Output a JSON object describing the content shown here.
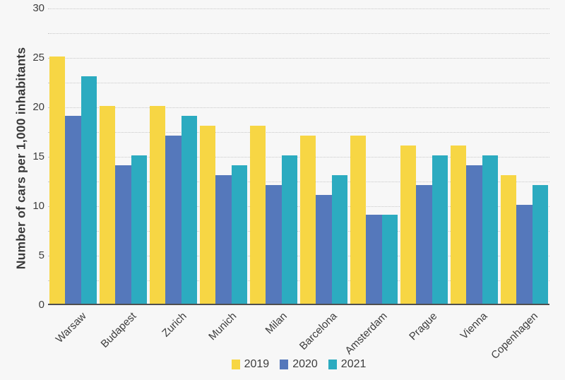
{
  "chart_data": {
    "type": "bar",
    "title": "",
    "ylabel": "Number of cars per 1,000 inhabitants",
    "xlabel": "",
    "categories": [
      "Warsaw",
      "Budapest",
      "Zurich",
      "Munich",
      "Milan",
      "Barcelona",
      "Amsterdam",
      "Prague",
      "Vienna",
      "Copenhagen"
    ],
    "series": [
      {
        "name": "2019",
        "color": "#F7D644",
        "values": [
          25,
          20,
          20,
          18,
          18,
          17,
          17,
          16,
          16,
          13
        ]
      },
      {
        "name": "2020",
        "color": "#5578BB",
        "values": [
          19,
          14,
          17,
          13,
          12,
          11,
          9,
          12,
          14,
          10
        ]
      },
      {
        "name": "2021",
        "color": "#2CABC0",
        "values": [
          23,
          15,
          19,
          14,
          15,
          13,
          9,
          15,
          15,
          12
        ]
      }
    ],
    "ylim": [
      0,
      30
    ],
    "yticks": [
      0,
      5,
      10,
      15,
      20,
      25,
      30
    ],
    "grid_step": 2.5,
    "grid_style": "dotted horizontal",
    "legend_position": "bottom",
    "legend_labels": [
      "2019",
      "2020",
      "2021"
    ]
  },
  "colors": {
    "background": "#f7f7f7",
    "axis_line": "#4f4f4f",
    "gridline": "#c8c8c8",
    "text": "#3d3d3d"
  }
}
